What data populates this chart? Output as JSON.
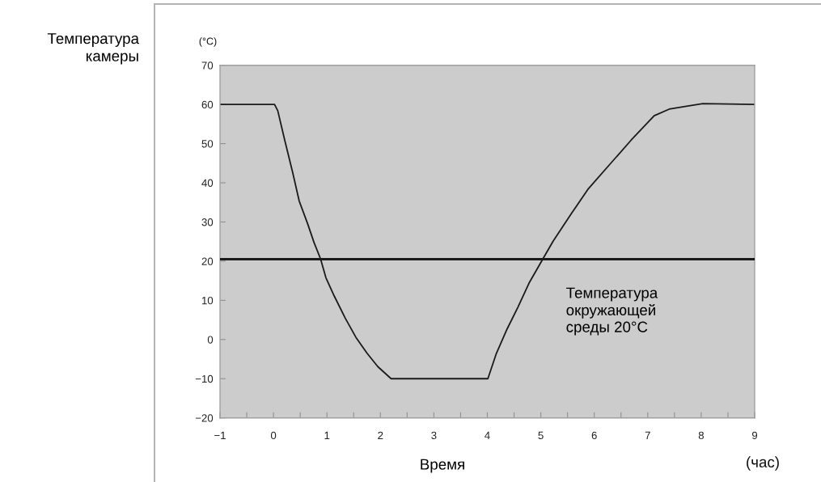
{
  "chart_data": {
    "type": "line",
    "ylabel": "Температура\nкамеры",
    "xlabel": "Время",
    "annotations": [
      "(°C)",
      "(час)"
    ],
    "series": [
      {
        "color": "#1a1a1a",
        "x": [
          -1,
          0.02,
          0.08,
          0.21,
          0.36,
          0.48,
          0.64,
          0.76,
          0.88,
          0.98,
          1.14,
          1.34,
          1.54,
          1.75,
          1.95,
          2.2,
          4.01,
          4.17,
          4.37,
          4.57,
          4.78,
          5.04,
          5.23,
          5.38,
          5.58,
          5.89,
          6.29,
          6.69,
          7.12,
          7.4,
          7.7,
          8.03,
          9
        ],
        "values": [
          60,
          60,
          58.4,
          50.9,
          42.6,
          35.4,
          29.5,
          24.7,
          20.6,
          15.8,
          11,
          5.5,
          0.6,
          -3.5,
          -6.9,
          -10,
          -10,
          -3.5,
          2.7,
          8.2,
          14.4,
          20.6,
          25.1,
          28.2,
          32.3,
          38.5,
          44.7,
          50.9,
          57.1,
          58.8,
          59.5,
          60.2,
          60
        ]
      }
    ],
    "xlim": [
      -1,
      9
    ],
    "xticks": [
      {
        "value": -1,
        "label": "−1"
      },
      {
        "value": -0.5,
        "label": null
      },
      0,
      {
        "value": 0.5,
        "label": null
      },
      1,
      {
        "value": 1.5,
        "label": null
      },
      2,
      {
        "value": 2.5,
        "label": null
      },
      3,
      {
        "value": 3.5,
        "label": null
      },
      4,
      {
        "value": 4.5,
        "label": null
      },
      5,
      {
        "value": 5.5,
        "label": null
      },
      6,
      {
        "value": 6.5,
        "label": null
      },
      7,
      {
        "value": 7.5,
        "label": null
      },
      8,
      {
        "value": 8.5,
        "label": null
      },
      9
    ],
    "ylim": [
      -20,
      70
    ],
    "yticks": [
      {
        "value": -20,
        "label": "−20"
      },
      {
        "value": -10,
        "label": "−10"
      },
      0,
      10,
      20,
      30,
      40,
      50,
      60,
      70
    ],
    "ref_lines": [
      {
        "axis": "y",
        "value": 20.5,
        "label": "Температура\nокружающей\nсреды 20°C",
        "color": "#1a1a1a"
      }
    ],
    "grid": false,
    "line_style": "solid"
  }
}
